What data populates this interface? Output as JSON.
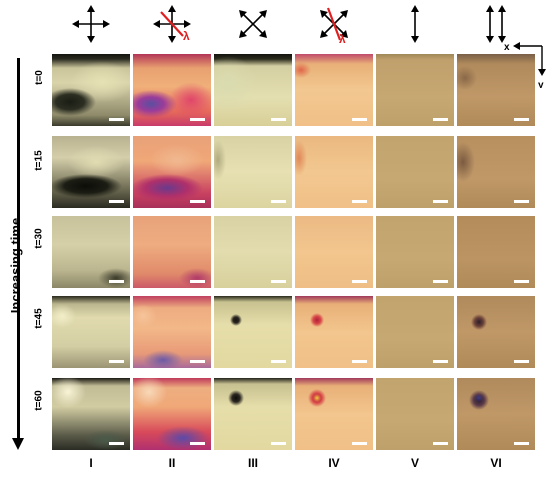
{
  "figure": {
    "y_axis_label": "Increasing time",
    "rows": [
      "t=0",
      "t=15",
      "t=30",
      "t=45",
      "t=60"
    ],
    "columns": [
      "I",
      "II",
      "III",
      "IV",
      "V",
      "VI"
    ],
    "column_icons": [
      "crossed-polarizers-0-icon",
      "crossed-polarizers-0-with-lambda-plate-icon",
      "crossed-polarizers-45-icon",
      "crossed-polarizers-45-with-lambda-plate-icon",
      "single-polarizer-vertical-icon",
      "single-polarizer-double-vertical-icon"
    ],
    "lambda_label": "λ",
    "axes": {
      "x": "x",
      "y": "y"
    }
  }
}
